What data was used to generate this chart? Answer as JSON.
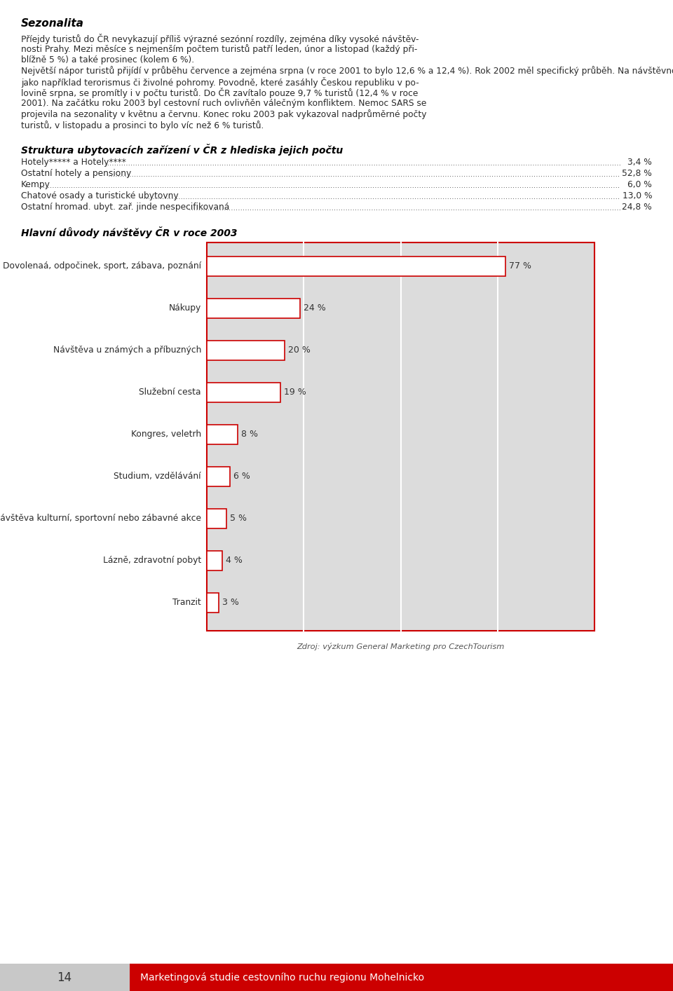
{
  "page_title": "Sezonalita",
  "para_lines": [
    "Příejdy turistů do ČR nevykazují příliš výrazné sezónní rozdíly, zejména díky vysoké návštěv-",
    "nosti Prahy. Mezi měsíce s nejmenším počtem turistů patří leden, únor a listopad (každý při-",
    "blížně 5 %) a také prosinec (kolem 6 %).",
    "Největší nápor turistů přijídí v průběhu července a zejména srpna (v roce 2001 to bylo 12,6 % a 12,4 %). Rok 2002 měl specifický průběh. Na návštěvnost mají vliv takové faktory",
    "jako například terorismus či živolné pohromy. Povodně, které zasáhly Českou republiku v po-",
    "lovině srpna, se promítly i v počtu turistů. Do ČR zavítalo pouze 9,7 % turistů (12,4 % v roce",
    "2001). Na začátku roku 2003 byl cestovní ruch ovlivňěn válečným konfliktem. Nemoc SARS se",
    "projevila na sezonality v květnu a červnu. Konec roku 2003 pak vykazoval nadprůměrné počty",
    "turistů, v listopadu a prosinci to bylo víc než 6 % turistů."
  ],
  "section2_title": "Struktura ubytovacích zařízení v ČR z hlediska jejich počtu",
  "accommodation": [
    {
      "label": "Hotely***** a Hotely****",
      "value": "3,4 %"
    },
    {
      "label": "Ostatní hotely a pensiony",
      "value": "52,8 %"
    },
    {
      "label": "Kempy",
      "value": "6,0 %"
    },
    {
      "label": "Chatové osady a turistické ubytovny",
      "value": "13,0 %"
    },
    {
      "label": "Ostatní hromad. ubyt. zař. jinde nespecifikovaná",
      "value": "24,8 %"
    }
  ],
  "chart_title": "Hlavní důvody návštěvy ČR v roce 2003",
  "chart_categories": [
    "Dovolenaá, odpočinek, sport, zábava, poznání",
    "Nákupy",
    "Návštěva u známých a příbuzných",
    "Služební cesta",
    "Kongres, veletrh",
    "Studium, vzdělávání",
    "Návštěva kulturní, sportovní nebo zábavné akce",
    "Lázně, zdravotní pobyt",
    "Tranzit"
  ],
  "chart_values": [
    77,
    24,
    20,
    19,
    8,
    6,
    5,
    4,
    3
  ],
  "chart_labels": [
    "77 %",
    "24 %",
    "20 %",
    "19 %",
    "8 %",
    "6 %",
    "5 %",
    "4 %",
    "3 %"
  ],
  "source_text": "Zdroj: výzkum General Marketing pro CzechTourism",
  "footer_page": "14",
  "footer_text": "Marketingová studie cestovního ruchu regionu Mohelnicko",
  "bar_border_color": "#cc0000",
  "chart_bg_color": "#dcdcdc",
  "footer_bg_color": "#cc0000",
  "page_number_bg": "#c8c8c8"
}
